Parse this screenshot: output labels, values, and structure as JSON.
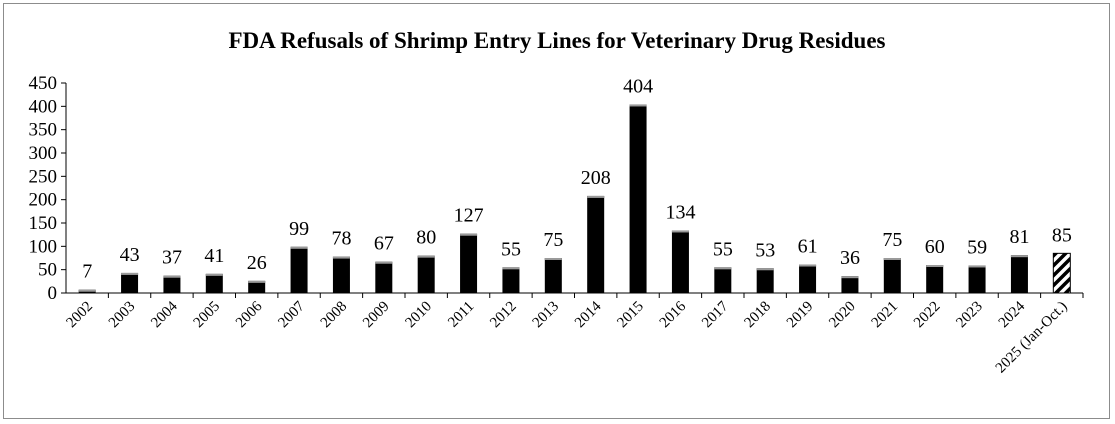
{
  "chart_data": {
    "type": "bar",
    "title": "FDA Refusals of Shrimp Entry Lines for Veterinary Drug Residues",
    "xlabel": "",
    "ylabel": "",
    "ylim": [
      0,
      450
    ],
    "yticks": [
      0,
      50,
      100,
      150,
      200,
      250,
      300,
      350,
      400,
      450
    ],
    "grid": false,
    "categories": [
      "2002",
      "2003",
      "2004",
      "2005",
      "2006",
      "2007",
      "2008",
      "2009",
      "2010",
      "2011",
      "2012",
      "2013",
      "2014",
      "2015",
      "2016",
      "2017",
      "2018",
      "2019",
      "2020",
      "2021",
      "2022",
      "2023",
      "2024",
      "2025 (Jan-Oct.)"
    ],
    "values": [
      7,
      43,
      37,
      41,
      26,
      99,
      78,
      67,
      80,
      127,
      55,
      75,
      208,
      404,
      134,
      55,
      53,
      61,
      36,
      75,
      60,
      59,
      81,
      85
    ],
    "bar_color": "#000000",
    "last_bar_style": "hatched"
  }
}
